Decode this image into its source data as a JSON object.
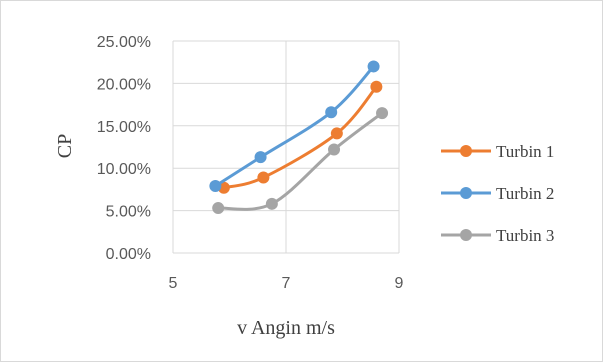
{
  "chart_data": {
    "type": "scatter",
    "title": "",
    "xlabel": "v Angin m/s",
    "ylabel": "CP",
    "xlim": [
      5,
      9
    ],
    "ylim": [
      0,
      0.25
    ],
    "x_ticks": [
      "5",
      "7",
      "9"
    ],
    "y_ticks": [
      "0.00%",
      "5.00%",
      "10.00%",
      "15.00%",
      "20.00%",
      "25.00%"
    ],
    "grid": "major-both",
    "legend_position": "right",
    "smooth_lines": true,
    "series": [
      {
        "name": "Turbin 1",
        "color": "#ed7d31",
        "points": [
          [
            5.9,
            0.077
          ],
          [
            6.6,
            0.089
          ],
          [
            7.9,
            0.141
          ],
          [
            8.6,
            0.196
          ]
        ]
      },
      {
        "name": "Turbin 2",
        "color": "#5b9bd5",
        "points": [
          [
            5.75,
            0.079
          ],
          [
            6.55,
            0.113
          ],
          [
            7.8,
            0.166
          ],
          [
            8.55,
            0.22
          ]
        ]
      },
      {
        "name": "Turbin 3",
        "color": "#a5a5a5",
        "points": [
          [
            5.8,
            0.053
          ],
          [
            6.75,
            0.058
          ],
          [
            7.85,
            0.122
          ],
          [
            8.7,
            0.165
          ]
        ]
      }
    ]
  }
}
